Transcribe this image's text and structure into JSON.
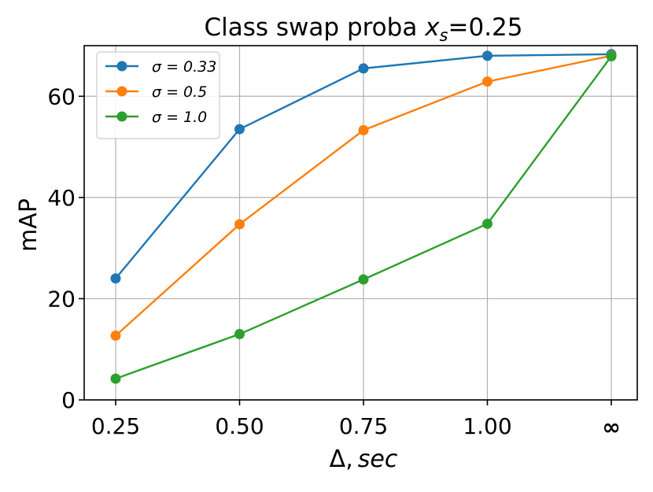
{
  "chart_data": {
    "type": "line",
    "title": "Class swap proba x_s=0.25",
    "title_parts": {
      "prefix": "Class swap proba ",
      "var": "x",
      "sub": "s",
      "suffix": "=0.25"
    },
    "xlabel": "Δ, sec",
    "xlabel_parts": {
      "delta": "Δ",
      "sep": ",",
      "unit": "sec"
    },
    "ylabel": "mAP",
    "categories": [
      "0.25",
      "0.50",
      "0.75",
      "1.00",
      "∞"
    ],
    "y_ticks": [
      0,
      20,
      40,
      60
    ],
    "ylim": [
      0,
      70
    ],
    "grid": true,
    "legend_position": "top-left",
    "series": [
      {
        "name": "σ = 0.33",
        "color": "#1f77b4",
        "values": [
          24.0,
          53.5,
          65.5,
          68.0,
          68.3
        ]
      },
      {
        "name": "σ = 0.5",
        "color": "#ff7f0e",
        "values": [
          12.7,
          34.7,
          53.3,
          62.9,
          68.0
        ]
      },
      {
        "name": "σ = 1.0",
        "color": "#2ca02c",
        "values": [
          4.2,
          13.0,
          23.8,
          34.8,
          67.9
        ]
      }
    ]
  }
}
